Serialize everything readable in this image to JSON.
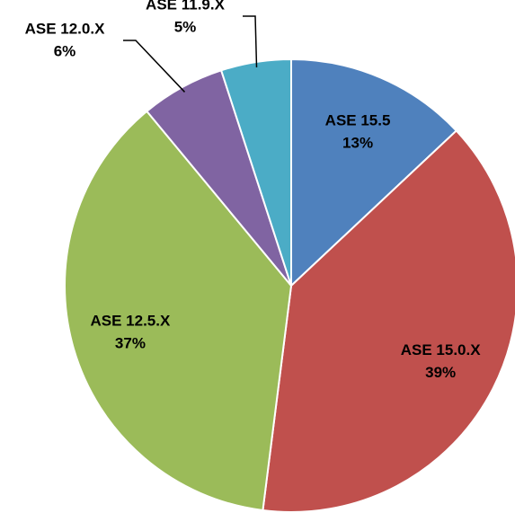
{
  "chart_data": {
    "type": "pie",
    "categories": [
      "ASE 15.5",
      "ASE 15.0.X",
      "ASE 12.5.X",
      "ASE 12.0.X",
      "ASE 11.9.X"
    ],
    "values": [
      13,
      39,
      37,
      6,
      5
    ],
    "value_labels": [
      "13%",
      "39%",
      "37%",
      "6%",
      "5%"
    ],
    "colors": [
      "#4f81bd",
      "#c0504d",
      "#9bbb59",
      "#8064a2",
      "#4bacc6"
    ]
  }
}
